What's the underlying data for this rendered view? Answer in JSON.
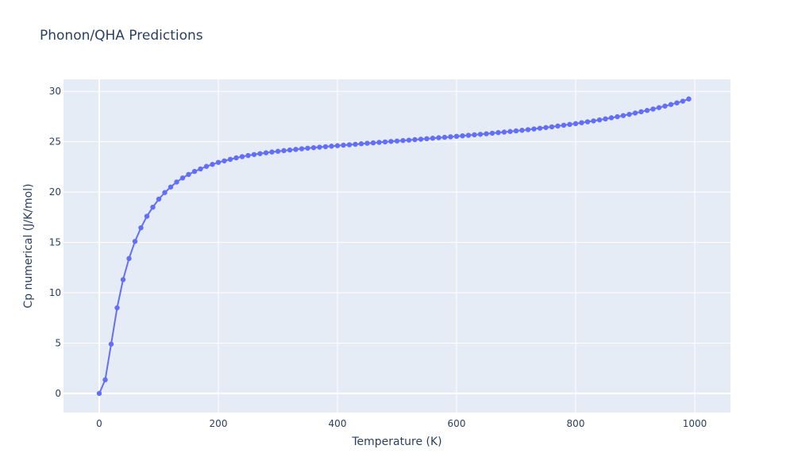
{
  "chart_data": {
    "type": "line",
    "title": "Phonon/QHA Predictions",
    "xlabel": "Temperature (K)",
    "ylabel": "Cp numerical (J/K/mol)",
    "xlim": [
      -60,
      1060
    ],
    "ylim": [
      -1.9,
      31.2
    ],
    "xticks": [
      0,
      200,
      400,
      600,
      800,
      1000
    ],
    "yticks": [
      0,
      5,
      10,
      15,
      20,
      25,
      30
    ],
    "xtick_labels": [
      "0",
      "200",
      "400",
      "600",
      "800",
      "1000"
    ],
    "ytick_labels": [
      "0",
      "5",
      "10",
      "15",
      "20",
      "25",
      "30"
    ],
    "grid": true,
    "plot_bg": "#e5ecf6",
    "series": [
      {
        "color": "#636efa",
        "mode": "lines+markers",
        "x": [
          0,
          10,
          20,
          30,
          40,
          50,
          60,
          70,
          80,
          90,
          100,
          110,
          120,
          130,
          140,
          150,
          160,
          170,
          180,
          190,
          200,
          210,
          220,
          230,
          240,
          250,
          260,
          270,
          280,
          290,
          300,
          310,
          320,
          330,
          340,
          350,
          360,
          370,
          380,
          390,
          400,
          410,
          420,
          430,
          440,
          450,
          460,
          470,
          480,
          490,
          500,
          510,
          520,
          530,
          540,
          550,
          560,
          570,
          580,
          590,
          600,
          610,
          620,
          630,
          640,
          650,
          660,
          670,
          680,
          690,
          700,
          710,
          720,
          730,
          740,
          750,
          760,
          770,
          780,
          790,
          800,
          810,
          820,
          830,
          840,
          850,
          860,
          870,
          880,
          890,
          900,
          910,
          920,
          930,
          940,
          950,
          960,
          970,
          980,
          990
        ],
        "y": [
          0.0,
          1.35,
          4.9,
          8.5,
          11.3,
          13.4,
          15.1,
          16.45,
          17.6,
          18.5,
          19.3,
          19.95,
          20.5,
          21.0,
          21.4,
          21.75,
          22.05,
          22.3,
          22.55,
          22.75,
          22.95,
          23.1,
          23.25,
          23.4,
          23.52,
          23.63,
          23.73,
          23.82,
          23.9,
          23.98,
          24.05,
          24.12,
          24.18,
          24.24,
          24.3,
          24.36,
          24.41,
          24.46,
          24.51,
          24.56,
          24.61,
          24.66,
          24.7,
          24.75,
          24.8,
          24.85,
          24.89,
          24.94,
          24.98,
          25.03,
          25.07,
          25.12,
          25.16,
          25.21,
          25.25,
          25.3,
          25.35,
          25.4,
          25.44,
          25.49,
          25.54,
          25.59,
          25.64,
          25.69,
          25.74,
          25.79,
          25.85,
          25.91,
          25.96,
          26.02,
          26.08,
          26.14,
          26.2,
          26.27,
          26.34,
          26.41,
          26.48,
          26.56,
          26.64,
          26.72,
          26.8,
          26.89,
          26.98,
          27.07,
          27.17,
          27.27,
          27.38,
          27.49,
          27.6,
          27.72,
          27.85,
          27.98,
          28.11,
          28.25,
          28.39,
          28.54,
          28.7,
          28.86,
          29.03,
          29.25
        ]
      }
    ]
  }
}
